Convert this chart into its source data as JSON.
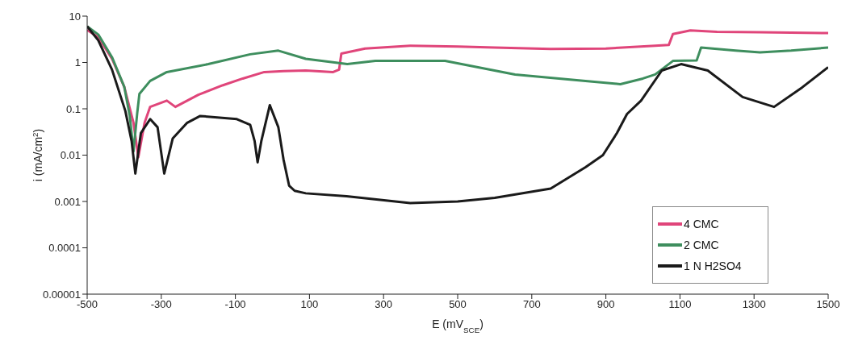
{
  "chart_data": {
    "type": "line",
    "xlabel": "E (mV$_{SCE}$)",
    "ylabel": "i (mA/cm$^{2}$)",
    "log": "y",
    "xlim": [
      -500,
      1500
    ],
    "xticks": [
      -500,
      -300,
      -100,
      100,
      300,
      500,
      700,
      900,
      1100,
      1300,
      1500
    ],
    "ylim": [
      1e-05,
      10
    ],
    "yticks": [
      {
        "value": 1e-05,
        "label": "0.00001"
      },
      0.0001,
      0.001,
      0.01,
      0.1,
      1,
      10
    ],
    "grid": false,
    "legend": "bottom right",
    "marker": "none",
    "line_style": "solid",
    "series": [
      {
        "name": "4 CMC",
        "color": "#e0457a",
        "x": [
          -500,
          -470,
          -433,
          -400,
          -375,
          -362,
          -345,
          -330,
          -285,
          -262,
          -200,
          -135,
          -80,
          -22,
          30,
          90,
          164,
          180,
          186,
          250,
          372,
          500,
          600,
          751,
          900,
          1033,
          1070,
          1081,
          1128,
          1200,
          1316,
          1400,
          1500
        ],
        "values": [
          5,
          3.5,
          1.2,
          0.3,
          0.05,
          0.009,
          0.05,
          0.11,
          0.15,
          0.11,
          0.2,
          0.32,
          0.45,
          0.62,
          0.65,
          0.67,
          0.62,
          0.7,
          1.55,
          2,
          2.3,
          2.2,
          2.1,
          1.95,
          2,
          2.3,
          2.4,
          4.1,
          4.9,
          4.6,
          4.5,
          4.4,
          4.3
        ]
      },
      {
        "name": "2 CMC",
        "color": "#3e8e5e",
        "x": [
          -500,
          -470,
          -433,
          -400,
          -385,
          -375,
          -365,
          -359,
          -330,
          -285,
          -173,
          -60,
          16,
          90,
          202,
          278,
          466,
          655,
          845,
          939,
          1000,
          1033,
          1081,
          1145,
          1157,
          1250,
          1316,
          1400,
          1500
        ],
        "values": [
          6,
          4,
          1.3,
          0.3,
          0.07,
          0.012,
          0.08,
          0.21,
          0.4,
          0.62,
          0.92,
          1.5,
          1.8,
          1.2,
          0.92,
          1.08,
          1.08,
          0.55,
          0.4,
          0.34,
          0.45,
          0.55,
          1.08,
          1.1,
          2.1,
          1.8,
          1.65,
          1.8,
          2.1
        ]
      },
      {
        "name": "1 N H2SO4",
        "color": "#1a1a1a",
        "x": [
          -500,
          -470,
          -433,
          -397,
          -380,
          -370,
          -355,
          -330,
          -310,
          -292,
          -269,
          -230,
          -195,
          -96,
          -60,
          -48,
          -40,
          -30,
          -7,
          16,
          30,
          45,
          60,
          90,
          200,
          372,
          500,
          600,
          751,
          845,
          892,
          930,
          957,
          995,
          1051,
          1103,
          1175,
          1269,
          1354,
          1430,
          1500
        ],
        "values": [
          6,
          3,
          0.7,
          0.09,
          0.02,
          0.004,
          0.03,
          0.06,
          0.04,
          0.004,
          0.023,
          0.05,
          0.07,
          0.06,
          0.045,
          0.02,
          0.007,
          0.02,
          0.12,
          0.04,
          0.008,
          0.0022,
          0.0017,
          0.0015,
          0.0013,
          0.00092,
          0.001,
          0.0012,
          0.0019,
          0.0055,
          0.01,
          0.03,
          0.077,
          0.15,
          0.67,
          0.92,
          0.67,
          0.18,
          0.11,
          0.29,
          0.79
        ]
      }
    ]
  }
}
